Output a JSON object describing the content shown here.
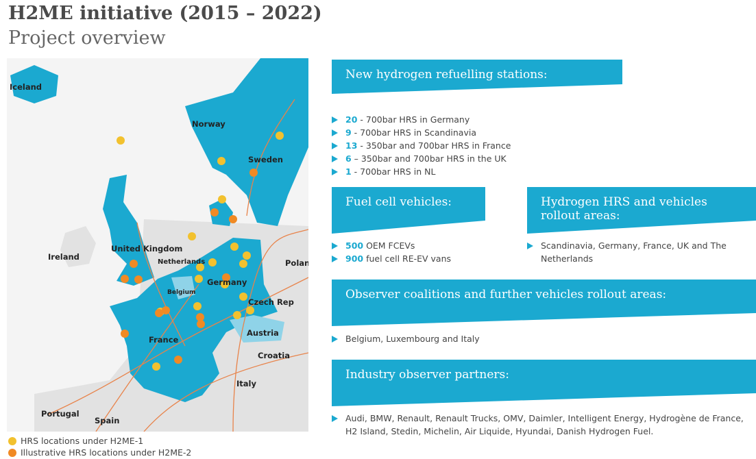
{
  "header": {
    "title": "H2ME initiative (2015 – 2022)",
    "subtitle": "Project overview"
  },
  "map": {
    "labels": [
      "Iceland",
      "Norway",
      "Sweden",
      "United Kingdom",
      "Ireland",
      "Netherlands",
      "Germany",
      "Polan",
      "Belgium",
      "Czech Rep",
      "France",
      "Austria",
      "Croatia",
      "Italy",
      "Portugal",
      "Spain"
    ],
    "legend": [
      "HRS locations under H2ME-1",
      "Illustrative HRS locations under H2ME-2"
    ]
  },
  "sections": [
    {
      "heading": "New hydrogen refuelling stations:",
      "items": [
        {
          "number": "20",
          "text": " - 700bar HRS in Germany"
        },
        {
          "number": "9",
          "text": " - 700bar HRS in Scandinavia"
        },
        {
          "number": "13",
          "text": " - 350bar and 700bar HRS  in France"
        },
        {
          "number": "6",
          "text": " – 350bar and 700bar HRS in the UK"
        },
        {
          "number": "1",
          "text": " - 700bar HRS in NL"
        }
      ]
    },
    {
      "heading": "Fuel cell vehicles:",
      "items": [
        {
          "number": "500",
          "text": " OEM FCEVs"
        },
        {
          "number": "900",
          "text": " fuel cell RE-EV vans"
        }
      ]
    },
    {
      "heading": "Hydrogen HRS and vehicles rollout areas:",
      "items": [
        {
          "text": "Scandinavia, Germany, France, UK and The Netherlands"
        }
      ]
    },
    {
      "heading": "Observer coalitions and further vehicles rollout areas:",
      "items": [
        {
          "text": "Belgium, Luxembourg and Italy"
        }
      ]
    },
    {
      "heading": "Industry observer partners:",
      "items": [
        {
          "text": "Audi, BMW, Renault, Renault Trucks, OMV, Daimler, Intelligent Energy, Hydrogène de France, H2 Island, Stedin, Michelin, Air Liquide, Hyundai, Danish Hydrogen Fuel."
        }
      ]
    }
  ]
}
